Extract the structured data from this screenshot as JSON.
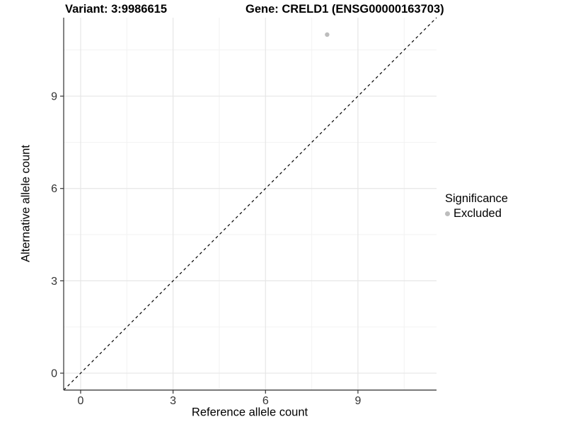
{
  "chart_data": {
    "type": "scatter",
    "titles": {
      "left": "Variant: 3:9986615",
      "right": "Gene: CRELD1 (ENSG00000163703)"
    },
    "xlabel": "Reference allele count",
    "ylabel": "Alternative allele count",
    "xticks": [
      0,
      3,
      6,
      9
    ],
    "yticks": [
      0,
      3,
      6,
      9
    ],
    "xlim": [
      -0.55,
      11.55
    ],
    "ylim": [
      -0.55,
      11.55
    ],
    "minor_grid_step": 1.5,
    "grid": true,
    "reference_line": {
      "type": "identity",
      "slope": 1,
      "intercept": 0,
      "style": "dashed"
    },
    "points": [
      {
        "x": 8,
        "y": 11,
        "significance": "Excluded"
      }
    ],
    "legend": {
      "title": "Significance",
      "position": "right",
      "items": [
        {
          "label": "Excluded",
          "color": "#bdbdbd",
          "marker": "circle"
        }
      ]
    }
  },
  "colors": {
    "background": "#ffffff",
    "point": "#bdbdbd",
    "grid_major": "#e6e6e6",
    "grid_minor": "#f2f2f2",
    "axis_line": "#4d4d4d",
    "tick_mark": "#333333",
    "tick_label": "#333333",
    "identity_line": "#000000"
  }
}
